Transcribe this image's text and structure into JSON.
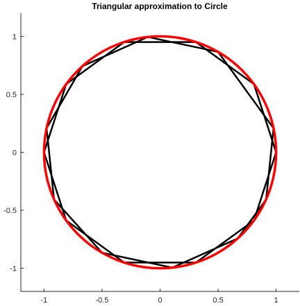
{
  "chart_data": {
    "type": "line",
    "title": "Triangular approximation to Circle",
    "xlabel": "",
    "ylabel": "",
    "xlim": [
      -1.2,
      1.2
    ],
    "ylim": [
      -1.2,
      1.2
    ],
    "xticks": [
      -1,
      -0.5,
      0,
      0.5,
      1
    ],
    "yticks": [
      -1,
      -0.5,
      0,
      0.5,
      1
    ],
    "xtick_labels": [
      "-1",
      "-0.5",
      "0",
      "0.5",
      "1"
    ],
    "ytick_labels": [
      "-1",
      "-0.5",
      "0",
      "0.5",
      "1"
    ],
    "grid": false,
    "series": [
      {
        "kind": "polygon",
        "color": "#000000",
        "x": [
          1,
          0.809,
          0.309,
          -0.309,
          -0.809,
          -1,
          -0.809,
          -0.309,
          0.309,
          0.809
        ],
        "y": [
          0,
          0.588,
          0.951,
          0.951,
          0.588,
          0,
          -0.588,
          -0.951,
          -0.951,
          -0.588
        ]
      },
      {
        "kind": "polygon",
        "color": "#000000",
        "x": [
          0.978,
          0.5,
          -0.105,
          -0.669,
          -0.978,
          -0.914,
          -0.5,
          0.105,
          0.669,
          0.914
        ],
        "y": [
          0.208,
          0.866,
          0.995,
          0.743,
          0.208,
          -0.407,
          -0.866,
          -0.995,
          -0.743,
          -0.407
        ]
      },
      {
        "kind": "circle",
        "color": "#ff0000",
        "center": [
          0,
          0
        ],
        "radius": 1
      }
    ]
  }
}
